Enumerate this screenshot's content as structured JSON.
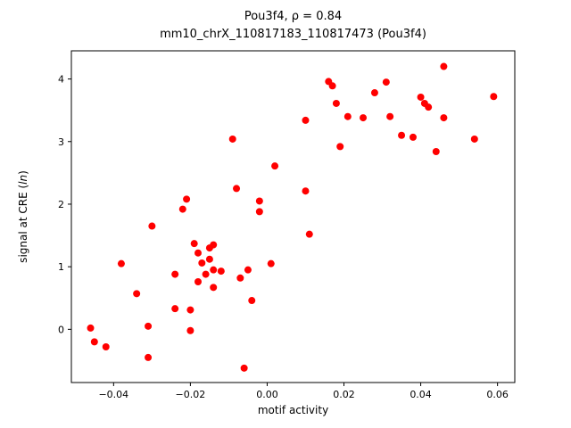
{
  "chart_data": {
    "type": "scatter",
    "title": "Pou3f4, ρ = 0.84",
    "subtitle": "mm10_chrX_110817183_110817473 (Pou3f4)",
    "xlabel": "motif activity",
    "ylabel": "signal at CRE (ln)",
    "ylabel_prefix": "signal at CRE (",
    "ylabel_italic": "ln",
    "ylabel_suffix": ")",
    "marker_color": "#ff0000",
    "grid": false,
    "legend": "none",
    "xlim": [
      -0.051,
      0.0645
    ],
    "ylim": [
      -0.85,
      4.45
    ],
    "xticks": [
      -0.04,
      -0.02,
      0.0,
      0.02,
      0.04,
      0.06
    ],
    "xtick_labels": [
      "−0.04",
      "−0.02",
      "0.00",
      "0.02",
      "0.04",
      "0.06"
    ],
    "yticks": [
      0,
      1,
      2,
      3,
      4
    ],
    "ytick_labels": [
      "0",
      "1",
      "2",
      "3",
      "4"
    ],
    "points": [
      [
        -0.046,
        0.02
      ],
      [
        -0.045,
        -0.2
      ],
      [
        -0.042,
        -0.28
      ],
      [
        -0.038,
        1.05
      ],
      [
        -0.034,
        0.57
      ],
      [
        -0.031,
        0.05
      ],
      [
        -0.031,
        -0.45
      ],
      [
        -0.03,
        1.65
      ],
      [
        -0.024,
        0.88
      ],
      [
        -0.024,
        0.33
      ],
      [
        -0.022,
        1.92
      ],
      [
        -0.021,
        2.08
      ],
      [
        -0.02,
        0.31
      ],
      [
        -0.02,
        -0.02
      ],
      [
        -0.019,
        1.37
      ],
      [
        -0.018,
        1.22
      ],
      [
        -0.018,
        0.76
      ],
      [
        -0.017,
        1.06
      ],
      [
        -0.016,
        0.88
      ],
      [
        -0.015,
        1.3
      ],
      [
        -0.015,
        1.12
      ],
      [
        -0.014,
        1.35
      ],
      [
        -0.014,
        0.95
      ],
      [
        -0.014,
        0.67
      ],
      [
        -0.012,
        0.93
      ],
      [
        -0.009,
        3.04
      ],
      [
        -0.008,
        2.25
      ],
      [
        -0.007,
        0.82
      ],
      [
        -0.006,
        -0.62
      ],
      [
        -0.005,
        0.95
      ],
      [
        -0.004,
        0.46
      ],
      [
        -0.002,
        2.05
      ],
      [
        -0.002,
        1.88
      ],
      [
        0.001,
        1.05
      ],
      [
        0.002,
        2.61
      ],
      [
        0.01,
        3.34
      ],
      [
        0.01,
        2.21
      ],
      [
        0.011,
        1.52
      ],
      [
        0.016,
        3.96
      ],
      [
        0.017,
        3.89
      ],
      [
        0.018,
        3.61
      ],
      [
        0.019,
        2.92
      ],
      [
        0.021,
        3.4
      ],
      [
        0.025,
        3.38
      ],
      [
        0.028,
        3.78
      ],
      [
        0.031,
        3.95
      ],
      [
        0.032,
        3.4
      ],
      [
        0.035,
        3.1
      ],
      [
        0.038,
        3.07
      ],
      [
        0.04,
        3.71
      ],
      [
        0.041,
        3.61
      ],
      [
        0.042,
        3.55
      ],
      [
        0.044,
        2.84
      ],
      [
        0.046,
        4.2
      ],
      [
        0.046,
        3.38
      ],
      [
        0.054,
        3.04
      ],
      [
        0.059,
        3.72
      ]
    ]
  }
}
